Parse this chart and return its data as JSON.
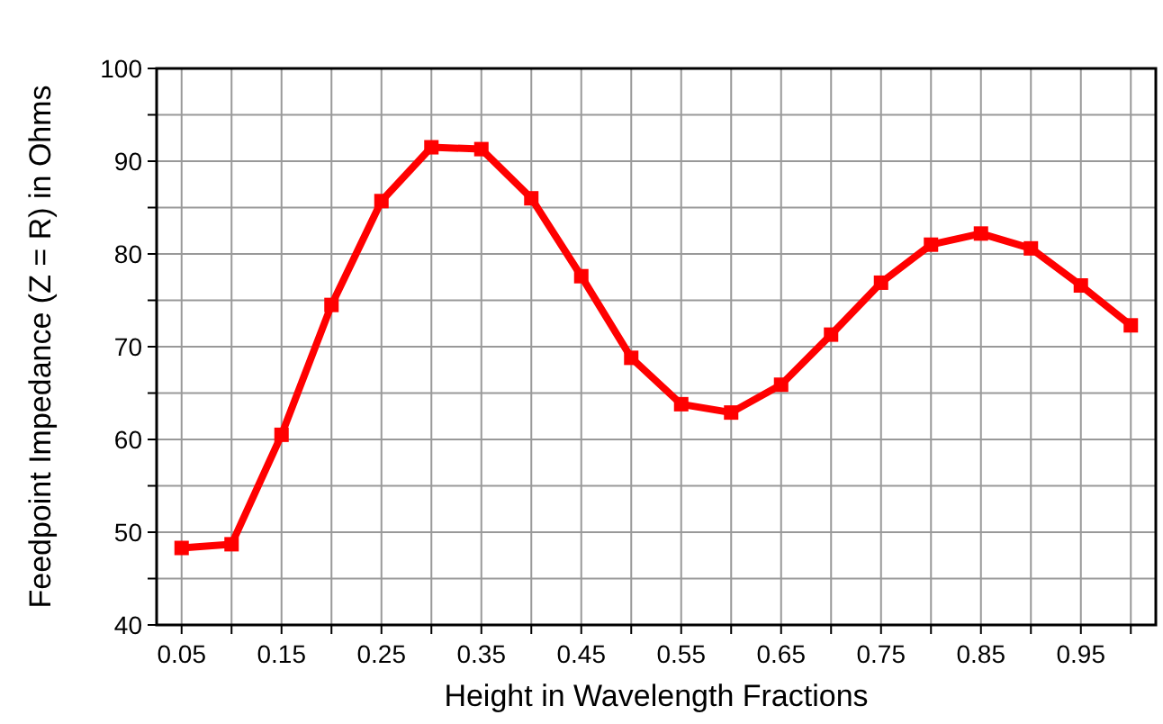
{
  "chart_data": {
    "type": "line",
    "xlabel": "Height in Wavelength Fractions",
    "ylabel": "Feedpoint Impedance (Z = R) in Ohms",
    "x": [
      0.05,
      0.1,
      0.15,
      0.2,
      0.25,
      0.3,
      0.35,
      0.4,
      0.45,
      0.5,
      0.55,
      0.6,
      0.65,
      0.7,
      0.75,
      0.8,
      0.85,
      0.9,
      0.95,
      1.0
    ],
    "series": [
      {
        "color": "#ff0000",
        "values": [
          48.3,
          48.7,
          60.5,
          74.5,
          85.7,
          91.5,
          91.3,
          86,
          77.6,
          68.8,
          63.8,
          62.9,
          65.9,
          71.3,
          76.9,
          81,
          82.2,
          80.6,
          76.6,
          72.3
        ]
      }
    ],
    "xlim": [
      0.025,
      1.025
    ],
    "xticks": [
      0.05,
      {
        "value": 0.1,
        "label": null
      },
      0.15,
      {
        "value": 0.2,
        "label": null
      },
      0.25,
      {
        "value": 0.3,
        "label": null
      },
      0.35,
      {
        "value": 0.4,
        "label": null
      },
      0.45,
      {
        "value": 0.5,
        "label": null
      },
      0.55,
      {
        "value": 0.6,
        "label": null
      },
      0.65,
      {
        "value": 0.7,
        "label": null
      },
      0.75,
      {
        "value": 0.8,
        "label": null
      },
      0.85,
      {
        "value": 0.9,
        "label": null
      },
      0.95,
      {
        "value": 1.0,
        "label": null
      }
    ],
    "ylim": [
      40,
      100
    ],
    "yticks": [
      40,
      {
        "value": 45,
        "label": null
      },
      50,
      {
        "value": 55,
        "label": null
      },
      60,
      {
        "value": 65,
        "label": null
      },
      70,
      {
        "value": 75,
        "label": null
      },
      80,
      {
        "value": 85,
        "label": null
      },
      90,
      {
        "value": 95,
        "label": null
      },
      100
    ],
    "grid": true,
    "marker": "square",
    "line_style": "solid"
  }
}
